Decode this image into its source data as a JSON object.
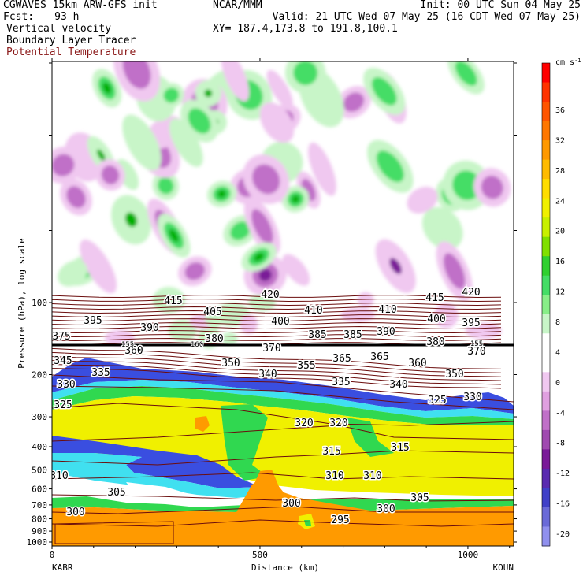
{
  "header": {
    "model": "CGWAVES 15km ARW-GFS init",
    "fcst_label": "Fcst:",
    "fcst_value": "93 h",
    "field1": "Vertical velocity",
    "field2": "Boundary Layer Tracer",
    "field3": "Potential Temperature",
    "org": "NCAR/MMM",
    "init": "Init: 00 UTC Sun 04 May 25",
    "valid": "Valid: 21 UTC Wed 07 May 25 (16 CDT Wed 07 May 25)",
    "xy": "XY= 187.4,173.8 to 191.8,100.1"
  },
  "colors": {
    "field3_text": "#8b1a1a",
    "theta_line": "#6b0d0d",
    "tropopause": "#000000"
  },
  "chart_data": {
    "type": "heatmap",
    "title": "Vertical velocity / Boundary Layer Tracer / Potential Temperature cross-section",
    "xlabel": "Distance (km)",
    "ylabel": "Pressure (hPa), log scale",
    "x_ticks": [
      "0",
      "500",
      "1000"
    ],
    "x_tick_values": [
      0,
      500,
      1000
    ],
    "xlim": [
      0,
      1110
    ],
    "y_ticks": [
      "100",
      "200",
      "300",
      "400",
      "500",
      "600",
      "700",
      "800",
      "900",
      "1000"
    ],
    "y_tick_values": [
      100,
      200,
      300,
      400,
      500,
      600,
      700,
      800,
      900,
      1000
    ],
    "left_station": "KABR",
    "right_station": "KOUN",
    "colorbar": {
      "unit": "cm s",
      "unit_exp": "-1",
      "labels": [
        "36",
        "32",
        "28",
        "24",
        "20",
        "16",
        "12",
        "8",
        "4",
        "0",
        "-4",
        "-8",
        "-12",
        "-16",
        "-20"
      ],
      "colors": [
        "#ff0000",
        "#ff3300",
        "#ff5500",
        "#ff7700",
        "#ff9900",
        "#ffbb00",
        "#ffdd00",
        "#f0f000",
        "#c8f000",
        "#80e000",
        "#30d030",
        "#44dd66",
        "#88ee88",
        "#c8f5c8",
        "#ffffff",
        "#ffffff",
        "#f0c8f0",
        "#e0a0e0",
        "#c070c8",
        "#a04ab0",
        "#7a1a98",
        "#5a2ab0",
        "#4040c8",
        "#6a6ad8",
        "#9090ee"
      ]
    },
    "theta_labels": [
      {
        "text": "420",
        "x": 343,
        "y": 378
      },
      {
        "text": "420",
        "x": 598,
        "y": 375
      },
      {
        "text": "415",
        "x": 220,
        "y": 386
      },
      {
        "text": "415",
        "x": 552,
        "y": 382
      },
      {
        "text": "405",
        "x": 270,
        "y": 400
      },
      {
        "text": "410",
        "x": 398,
        "y": 398
      },
      {
        "text": "410",
        "x": 492,
        "y": 397
      },
      {
        "text": "400",
        "x": 356,
        "y": 412
      },
      {
        "text": "400",
        "x": 554,
        "y": 409
      },
      {
        "text": "395",
        "x": 118,
        "y": 411
      },
      {
        "text": "395",
        "x": 598,
        "y": 414
      },
      {
        "text": "390",
        "x": 190,
        "y": 420
      },
      {
        "text": "390",
        "x": 490,
        "y": 425
      },
      {
        "text": "385",
        "x": 403,
        "y": 429
      },
      {
        "text": "385",
        "x": 448,
        "y": 429
      },
      {
        "text": "380",
        "x": 272,
        "y": 434
      },
      {
        "text": "380",
        "x": 553,
        "y": 438
      },
      {
        "text": "375",
        "x": 78,
        "y": 431
      },
      {
        "text": "370",
        "x": 345,
        "y": 446
      },
      {
        "text": "370",
        "x": 605,
        "y": 450
      },
      {
        "text": "360",
        "x": 170,
        "y": 449
      },
      {
        "text": "360",
        "x": 530,
        "y": 465
      },
      {
        "text": "365",
        "x": 434,
        "y": 459
      },
      {
        "text": "365",
        "x": 482,
        "y": 457
      },
      {
        "text": "350",
        "x": 293,
        "y": 465
      },
      {
        "text": "350",
        "x": 577,
        "y": 479
      },
      {
        "text": "355",
        "x": 389,
        "y": 468
      },
      {
        "text": "345",
        "x": 80,
        "y": 462
      },
      {
        "text": "340",
        "x": 340,
        "y": 479
      },
      {
        "text": "340",
        "x": 506,
        "y": 492
      },
      {
        "text": "335",
        "x": 128,
        "y": 477
      },
      {
        "text": "335",
        "x": 433,
        "y": 489
      },
      {
        "text": "330",
        "x": 84,
        "y": 492
      },
      {
        "text": "330",
        "x": 600,
        "y": 508
      },
      {
        "text": "325",
        "x": 80,
        "y": 518
      },
      {
        "text": "325",
        "x": 555,
        "y": 512
      },
      {
        "text": "320",
        "x": 386,
        "y": 541
      },
      {
        "text": "320",
        "x": 430,
        "y": 541
      },
      {
        "text": "315",
        "x": 421,
        "y": 577
      },
      {
        "text": "315",
        "x": 508,
        "y": 572
      },
      {
        "text": "310",
        "x": 75,
        "y": 608
      },
      {
        "text": "310",
        "x": 425,
        "y": 608
      },
      {
        "text": "310",
        "x": 473,
        "y": 608
      },
      {
        "text": "305",
        "x": 148,
        "y": 629
      },
      {
        "text": "305",
        "x": 533,
        "y": 636
      },
      {
        "text": "300",
        "x": 96,
        "y": 654
      },
      {
        "text": "300",
        "x": 370,
        "y": 643
      },
      {
        "text": "300",
        "x": 490,
        "y": 650
      },
      {
        "text": "295",
        "x": 432,
        "y": 664
      }
    ],
    "tropopause_labels": [
      {
        "text": "155",
        "x": 162,
        "y": 437
      },
      {
        "text": "160",
        "x": 250,
        "y": 437
      },
      {
        "text": "155",
        "x": 605,
        "y": 436
      }
    ]
  }
}
